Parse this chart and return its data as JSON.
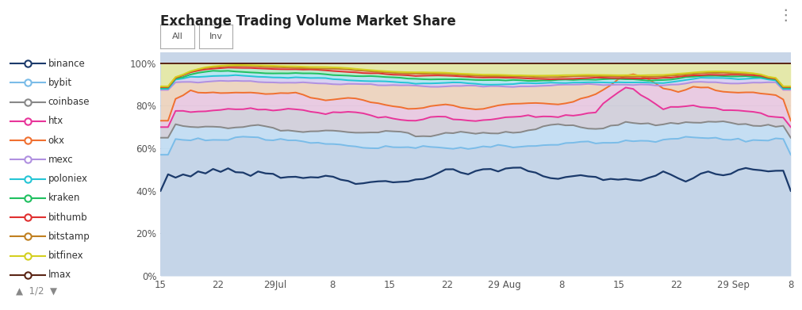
{
  "title": "Exchange Trading Volume Market Share",
  "exchanges": [
    "binance",
    "bybit",
    "coinbase",
    "htx",
    "okx",
    "mexc",
    "poloniex",
    "kraken",
    "bithumb",
    "bitstamp",
    "bitfinex",
    "lmax"
  ],
  "colors": {
    "binance": "#1b3a6b",
    "bybit": "#7abce8",
    "coinbase": "#888888",
    "htx": "#e8359a",
    "okx": "#f07030",
    "mexc": "#b090e0",
    "poloniex": "#25c5d5",
    "kraken": "#20c060",
    "bithumb": "#e03030",
    "bitstamp": "#c08020",
    "bitfinex": "#d4d020",
    "lmax": "#5a2515"
  },
  "fill_colors": {
    "binance_bg": "#c5d5e8",
    "bybit": "#c5e2f5",
    "coinbase": "#c8c8c8",
    "htx": "#f5c0de",
    "okx": "#fad0b0",
    "mexc": "#ddd0f5",
    "poloniex": "#b0eaf8",
    "kraken": "#b0f0c5",
    "bithumb": "#f5c0c0",
    "bitstamp": "#f0d8a0",
    "bitfinex": "#f0f080",
    "lmax": "#d0b0a0"
  },
  "bg_color": "#c8d6e8",
  "grid_color": "#b8c8da",
  "ytick_labels": [
    "0%",
    "20%",
    "40%",
    "60%",
    "80%",
    "100%"
  ],
  "x_tick_labels": [
    "15",
    "22",
    "29Jul",
    "8",
    "15",
    "22",
    "29 Aug",
    "8",
    "15",
    "22",
    "29 Sep",
    "8"
  ]
}
